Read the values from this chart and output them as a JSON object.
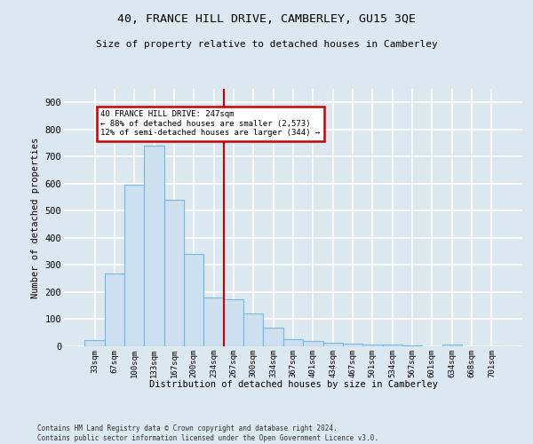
{
  "title_line1": "40, FRANCE HILL DRIVE, CAMBERLEY, GU15 3QE",
  "title_line2": "Size of property relative to detached houses in Camberley",
  "xlabel": "Distribution of detached houses by size in Camberley",
  "ylabel": "Number of detached properties",
  "categories": [
    "33sqm",
    "67sqm",
    "100sqm",
    "133sqm",
    "167sqm",
    "200sqm",
    "234sqm",
    "267sqm",
    "300sqm",
    "334sqm",
    "367sqm",
    "401sqm",
    "434sqm",
    "467sqm",
    "501sqm",
    "534sqm",
    "567sqm",
    "601sqm",
    "634sqm",
    "668sqm",
    "701sqm"
  ],
  "values": [
    22,
    270,
    595,
    740,
    540,
    340,
    180,
    175,
    120,
    68,
    25,
    20,
    12,
    10,
    8,
    6,
    4,
    0,
    5,
    0,
    0
  ],
  "bar_color": "#cce0f0",
  "bar_edge_color": "#7ab8d9",
  "vline_x_idx": 6.5,
  "vline_color": "#cc0000",
  "annotation_title": "40 FRANCE HILL DRIVE: 247sqm",
  "annotation_line2": "← 88% of detached houses are smaller (2,573)",
  "annotation_line3": "12% of semi-detached houses are larger (344) →",
  "annotation_box_color": "#cc0000",
  "annotation_bg": "#ffffff",
  "background_color": "#dce8f0",
  "grid_color": "#ffffff",
  "footer_line1": "Contains HM Land Registry data © Crown copyright and database right 2024.",
  "footer_line2": "Contains public sector information licensed under the Open Government Licence v3.0.",
  "ylim": [
    0,
    950
  ],
  "yticks": [
    0,
    100,
    200,
    300,
    400,
    500,
    600,
    700,
    800,
    900
  ]
}
